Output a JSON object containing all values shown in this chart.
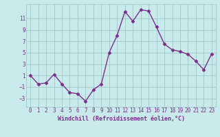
{
  "x": [
    0,
    1,
    2,
    3,
    4,
    5,
    6,
    7,
    8,
    9,
    10,
    11,
    12,
    13,
    14,
    15,
    16,
    17,
    18,
    19,
    20,
    21,
    22,
    23
  ],
  "y": [
    1.0,
    -0.5,
    -0.3,
    1.2,
    -0.5,
    -2.0,
    -2.2,
    -3.5,
    -1.5,
    -0.5,
    5.0,
    8.0,
    12.2,
    10.5,
    12.5,
    12.3,
    9.5,
    6.5,
    5.5,
    5.2,
    4.7,
    3.5,
    2.0,
    4.8
  ],
  "xlabel": "Windchill (Refroidissement éolien,°C)",
  "xlim": [
    -0.5,
    23.5
  ],
  "ylim": [
    -4.5,
    13.5
  ],
  "yticks": [
    -3,
    -1,
    1,
    3,
    5,
    7,
    9,
    11
  ],
  "xticks": [
    0,
    1,
    2,
    3,
    4,
    5,
    6,
    7,
    8,
    9,
    10,
    11,
    12,
    13,
    14,
    15,
    16,
    17,
    18,
    19,
    20,
    21,
    22,
    23
  ],
  "line_color": "#7b2d8b",
  "marker": "D",
  "marker_size": 2.5,
  "bg_color": "#c8eaea",
  "grid_color": "#a0c8c8",
  "font_color": "#7b2d8b",
  "tick_fontsize": 5.5,
  "xlabel_fontsize": 6.0,
  "linewidth": 1.0
}
